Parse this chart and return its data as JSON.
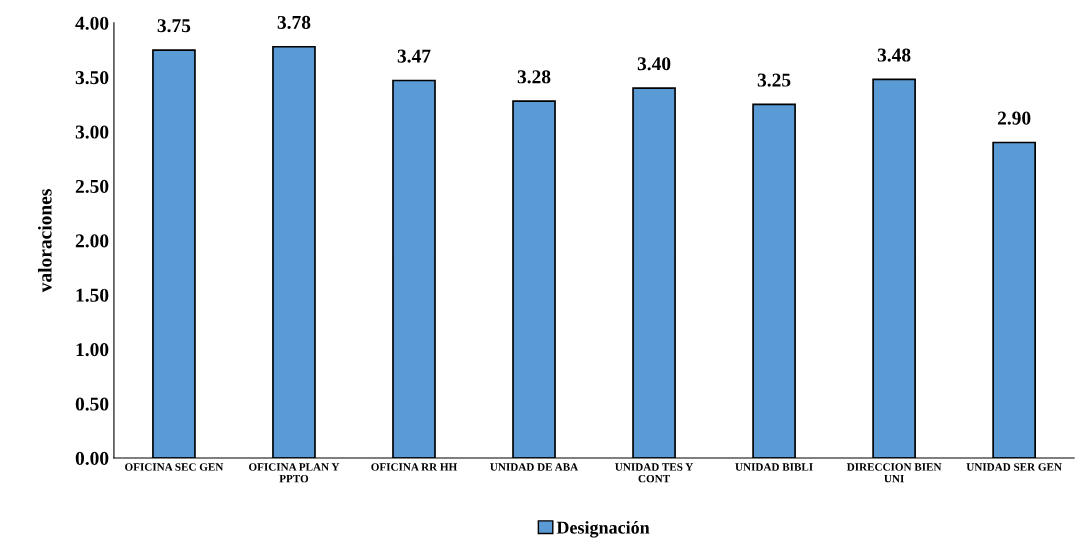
{
  "chart_data": {
    "type": "bar",
    "ylabel": "valoraciones",
    "categories": [
      "OFICINA SEC GEN",
      "OFICINA PLAN Y PPTO",
      "OFICINA RR HH",
      "UNIDAD DE ABA",
      "UNIDAD TES Y CONT",
      "UNIDAD BIBLI",
      "DIRECCION BIEN UNI",
      "UNIDAD SER GEN"
    ],
    "series": [
      {
        "name": "Designación",
        "color": "#5b9bd5",
        "values": [
          3.75,
          3.78,
          3.47,
          3.28,
          3.4,
          3.25,
          3.48,
          2.9
        ],
        "value_labels": [
          "3.75",
          "3.78",
          "3.47",
          "3.28",
          "3.40",
          "3.25",
          "3.48",
          "2.90"
        ]
      }
    ],
    "ylim": [
      0,
      4
    ],
    "yticks": [
      {
        "value": 0,
        "label": "0.00"
      },
      {
        "value": 0.5,
        "label": "0.50"
      },
      {
        "value": 1,
        "label": "1.00"
      },
      {
        "value": 1.5,
        "label": "1.50"
      },
      {
        "value": 2,
        "label": "2.00"
      },
      {
        "value": 2.5,
        "label": "2.50"
      },
      {
        "value": 3,
        "label": "3.00"
      },
      {
        "value": 3.5,
        "label": "3.50"
      },
      {
        "value": 4,
        "label": "4.00"
      }
    ],
    "legend": "bottom",
    "grid": false
  }
}
